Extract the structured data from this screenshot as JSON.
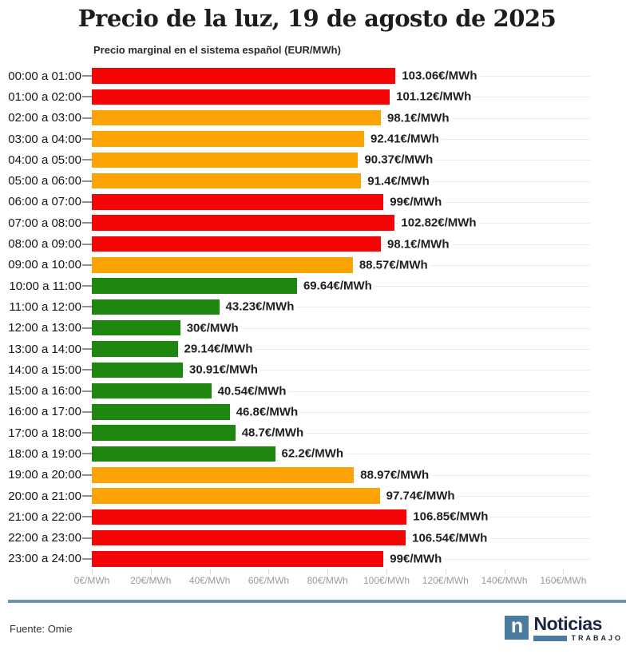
{
  "title": "Precio de la luz, 19 de agosto de 2025",
  "subtitle": "Precio marginal en el sistema español (EUR/MWh)",
  "source": "Fuente: Omie",
  "logo": {
    "glyph": "n",
    "brand": "Noticias",
    "sub": "TRABAJO"
  },
  "colors": {
    "red": "#f50505",
    "orange": "#fca404",
    "green": "#1e870f"
  },
  "chart_data": {
    "type": "bar",
    "orientation": "horizontal",
    "title": "Precio de la luz, 19 de agosto de 2025",
    "subtitle": "Precio marginal en el sistema español (EUR/MWh)",
    "xlabel": "EUR/MWh",
    "xlim": [
      0,
      169
    ],
    "grid": "row-gridlines",
    "categories": [
      "00:00 a 01:00",
      "01:00 a 02:00",
      "02:00 a 03:00",
      "03:00 a 04:00",
      "04:00 a 05:00",
      "05:00 a 06:00",
      "06:00 a 07:00",
      "07:00 a 08:00",
      "08:00 a 09:00",
      "09:00 a 10:00",
      "10:00 a 11:00",
      "11:00 a 12:00",
      "12:00 a 13:00",
      "13:00 a 14:00",
      "14:00 a 15:00",
      "15:00 a 16:00",
      "16:00 a 17:00",
      "17:00 a 18:00",
      "18:00 a 19:00",
      "19:00 a 20:00",
      "20:00 a 21:00",
      "21:00 a 22:00",
      "22:00 a 23:00",
      "23:00 a 24:00"
    ],
    "values": [
      103.06,
      101.12,
      98.1,
      92.41,
      90.37,
      91.4,
      99,
      102.82,
      98.1,
      88.57,
      69.64,
      43.23,
      30,
      29.14,
      30.91,
      40.54,
      46.8,
      48.7,
      62.2,
      88.97,
      97.74,
      106.85,
      106.54,
      99
    ],
    "value_labels": [
      "103.06€/MWh",
      "101.12€/MWh",
      "98.1€/MWh",
      "92.41€/MWh",
      "90.37€/MWh",
      "91.4€/MWh",
      "99€/MWh",
      "102.82€/MWh",
      "98.1€/MWh",
      "88.57€/MWh",
      "69.64€/MWh",
      "43.23€/MWh",
      "30€/MWh",
      "29.14€/MWh",
      "30.91€/MWh",
      "40.54€/MWh",
      "46.8€/MWh",
      "48.7€/MWh",
      "62.2€/MWh",
      "88.97€/MWh",
      "97.74€/MWh",
      "106.85€/MWh",
      "106.54€/MWh",
      "99€/MWh"
    ],
    "bar_colors": [
      "red",
      "red",
      "orange",
      "orange",
      "orange",
      "orange",
      "red",
      "red",
      "red",
      "orange",
      "green",
      "green",
      "green",
      "green",
      "green",
      "green",
      "green",
      "green",
      "green",
      "orange",
      "orange",
      "red",
      "red",
      "red"
    ],
    "x_tick_values": [
      0,
      20,
      40,
      60,
      80,
      100,
      120,
      140,
      160
    ],
    "x_tick_labels": [
      "0€/MWh",
      "20€/MWh",
      "40€/MWh",
      "60€/MWh",
      "80€/MWh",
      "100€/MWh",
      "120€/MWh",
      "140€/MWh",
      "160€/MWh"
    ]
  }
}
